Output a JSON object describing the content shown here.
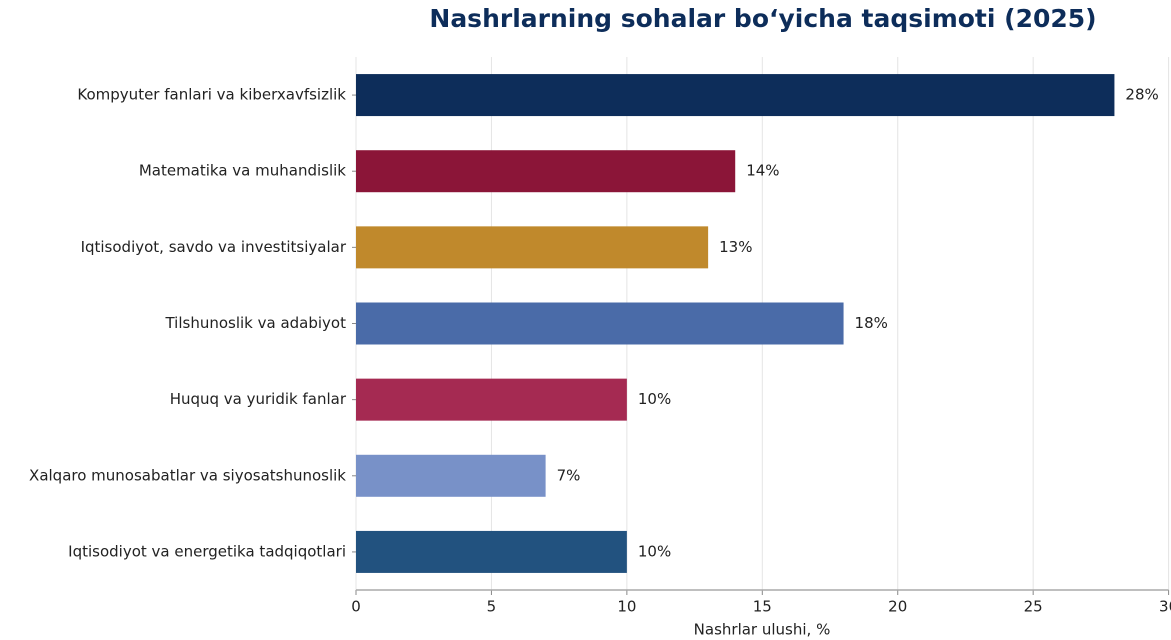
{
  "chart_data": {
    "type": "bar",
    "orientation": "horizontal",
    "title": "Nashrlarning sohalar bo‘yicha taqsimoti (2025)",
    "x_label": "Nashrlar ulushi, %",
    "categories": [
      "Kompyuter fanlari va kiberxavfsizlik",
      "Matematika va muhandislik",
      "Iqtisodiyot, savdo va investitsiyalar",
      "Tilshunoslik va adabiyot",
      "Huquq va yuridik fanlar",
      "Xalqaro munosabatlar va siyosatshunoslik",
      "Iqtisodiyot va energetika tadqiqotlari"
    ],
    "values": [
      28,
      14,
      13,
      18,
      10,
      7,
      10
    ],
    "value_labels": [
      "28%",
      "14%",
      "13%",
      "18%",
      "10%",
      "7%",
      "10%"
    ],
    "colors": [
      "#0d2d5a",
      "#8b1538",
      "#c0892c",
      "#4a6ba8",
      "#a52a52",
      "#7891c8",
      "#22527f"
    ],
    "xlim": [
      0,
      30
    ],
    "xticks": [
      0,
      5,
      10,
      15,
      20,
      25,
      30
    ],
    "grid": true
  }
}
